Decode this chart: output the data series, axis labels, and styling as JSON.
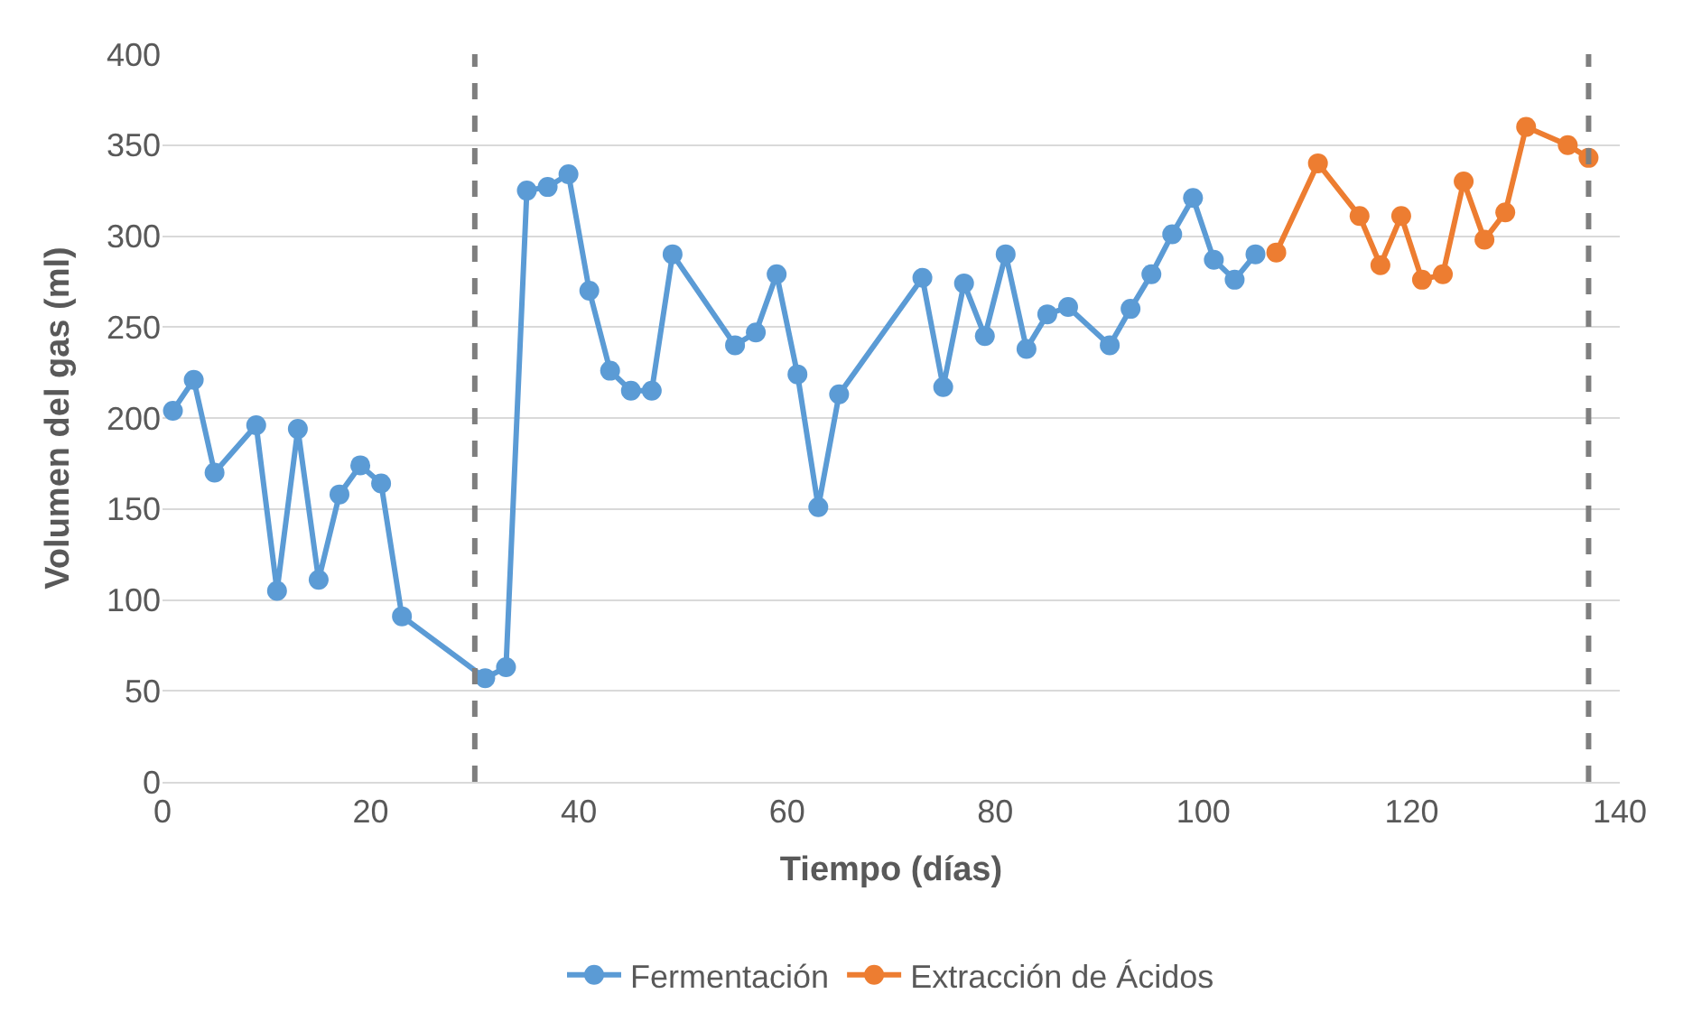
{
  "chart_data": {
    "type": "line",
    "xlabel": "Tiempo (días)",
    "ylabel": "Volumen del gas (ml)",
    "xlim": [
      0,
      140
    ],
    "xticks": [
      0,
      20,
      40,
      60,
      80,
      100,
      120,
      140
    ],
    "ylim": [
      0,
      400
    ],
    "yticks": [
      0,
      50,
      100,
      150,
      200,
      250,
      300,
      350,
      400
    ],
    "grid": "y",
    "legend": "bottom",
    "marker": "circle",
    "line_style": "solid",
    "series": [
      {
        "name": "Fermentación",
        "color": "#5b9bd5",
        "x": [
          1,
          3,
          5,
          9,
          11,
          13,
          15,
          17,
          19,
          21,
          23,
          31,
          33,
          35,
          37,
          39,
          41,
          43,
          45,
          47,
          49,
          55,
          57,
          59,
          61,
          63,
          65,
          73,
          75,
          77,
          79,
          81,
          83,
          85,
          87,
          91,
          93,
          95,
          97,
          99,
          101,
          103,
          105
        ],
        "values": [
          204,
          221,
          170,
          196,
          105,
          194,
          111,
          158,
          174,
          164,
          91,
          57,
          63,
          325,
          327,
          334,
          270,
          226,
          215,
          215,
          290,
          240,
          247,
          279,
          224,
          151,
          213,
          277,
          217,
          274,
          245,
          290,
          238,
          257,
          261,
          240,
          260,
          279,
          301,
          321,
          287,
          276,
          290
        ]
      },
      {
        "name": "Extracción de Ácidos",
        "color": "#ed7d31",
        "x": [
          107,
          111,
          115,
          117,
          119,
          121,
          123,
          125,
          127,
          129,
          131,
          135,
          137
        ],
        "values": [
          291,
          340,
          311,
          284,
          311,
          276,
          279,
          330,
          298,
          313,
          360,
          350,
          343
        ]
      }
    ],
    "ref_lines": [
      {
        "axis": "x",
        "value": 30,
        "color": "#7f7f7f",
        "line_style": "dashed"
      },
      {
        "axis": "x",
        "value": 137,
        "color": "#7f7f7f",
        "line_style": "dashed"
      }
    ]
  }
}
